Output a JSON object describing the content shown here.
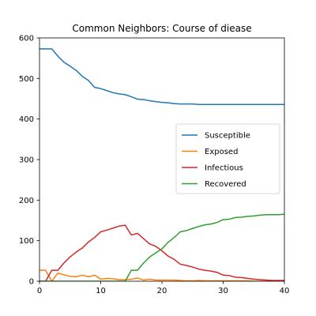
{
  "chart_data": {
    "type": "line",
    "title": "Common Neighbors: Course of diease",
    "xlabel": "",
    "ylabel": "",
    "xlim": [
      0,
      40
    ],
    "ylim": [
      0,
      600
    ],
    "xticks": [
      0,
      10,
      20,
      30,
      40
    ],
    "yticks": [
      0,
      100,
      200,
      300,
      400,
      500,
      600
    ],
    "grid": false,
    "legend": "center-right",
    "x": [
      0,
      1,
      2,
      3,
      4,
      5,
      6,
      7,
      8,
      9,
      10,
      11,
      12,
      13,
      14,
      15,
      16,
      17,
      18,
      19,
      20,
      21,
      22,
      23,
      24,
      25,
      26,
      27,
      28,
      29,
      30,
      31,
      32,
      33,
      34,
      35,
      36,
      37,
      38,
      39,
      40
    ],
    "series": [
      {
        "name": "Susceptible",
        "color": "#1f77b4",
        "values": [
          573,
          573,
          573,
          555,
          540,
          530,
          520,
          505,
          495,
          478,
          475,
          470,
          465,
          462,
          460,
          455,
          449,
          448,
          445,
          443,
          441,
          440,
          438,
          437,
          437,
          437,
          436,
          436,
          436,
          436,
          436,
          436,
          436,
          436,
          436,
          436,
          436,
          436,
          436,
          436,
          436
        ]
      },
      {
        "name": "Exposed",
        "color": "#ff7f0e",
        "values": [
          27,
          27,
          0,
          20,
          16,
          12,
          11,
          15,
          11,
          15,
          5,
          7,
          6,
          4,
          4,
          5,
          8,
          3,
          5,
          3,
          3,
          3,
          3,
          2,
          1,
          1,
          2,
          1,
          1,
          1,
          1,
          1,
          1,
          1,
          1,
          0,
          0,
          0,
          0,
          0,
          0
        ]
      },
      {
        "name": "Infectious",
        "color": "#d62728",
        "values": [
          0,
          0,
          27,
          27,
          45,
          60,
          72,
          82,
          97,
          108,
          122,
          126,
          131,
          136,
          138,
          114,
          118,
          105,
          92,
          86,
          75,
          62,
          54,
          42,
          39,
          35,
          30,
          27,
          25,
          22,
          15,
          14,
          10,
          9,
          7,
          5,
          4,
          3,
          2,
          2,
          2
        ]
      },
      {
        "name": "Recovered",
        "color": "#2ca02c",
        "values": [
          0,
          0,
          0,
          0,
          0,
          0,
          0,
          0,
          0,
          0,
          0,
          0,
          0,
          0,
          0,
          27,
          27,
          45,
          60,
          70,
          80,
          96,
          108,
          122,
          125,
          130,
          135,
          139,
          141,
          145,
          152,
          153,
          157,
          158,
          160,
          161,
          163,
          164,
          164,
          164,
          165
        ]
      }
    ]
  }
}
